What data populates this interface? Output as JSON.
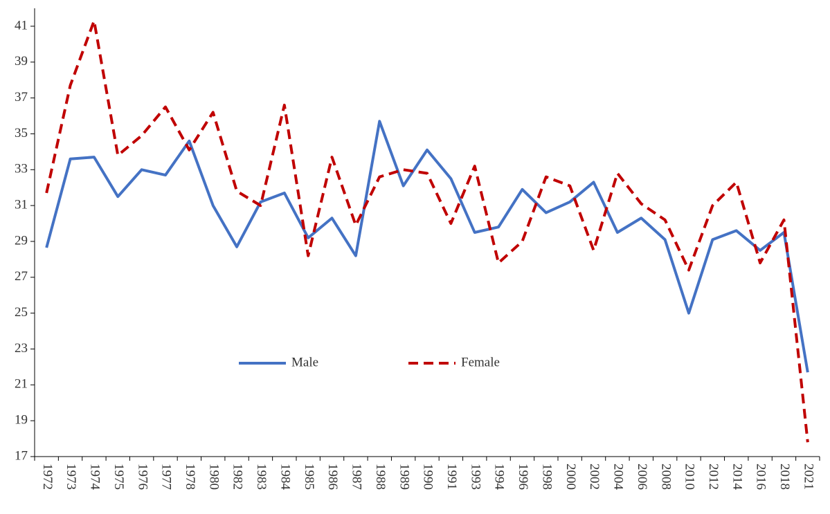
{
  "chart_data": {
    "type": "line",
    "categories": [
      "1972",
      "1973",
      "1974",
      "1975",
      "1976",
      "1977",
      "1978",
      "1980",
      "1982",
      "1983",
      "1984",
      "1985",
      "1986",
      "1987",
      "1988",
      "1989",
      "1990",
      "1991",
      "1993",
      "1994",
      "1996",
      "1998",
      "2000",
      "2002",
      "2004",
      "2006",
      "2008",
      "2010",
      "2012",
      "2014",
      "2016",
      "2018",
      "2021"
    ],
    "series": [
      {
        "name": "Male",
        "color": "#4472c4",
        "style": "solid",
        "values": [
          28.65,
          33.6,
          33.7,
          31.5,
          33.0,
          32.7,
          34.6,
          31.0,
          28.7,
          31.2,
          31.7,
          29.2,
          30.3,
          28.2,
          35.7,
          32.1,
          34.1,
          32.5,
          29.5,
          29.8,
          31.9,
          30.6,
          31.2,
          32.3,
          29.5,
          30.3,
          29.1,
          25.0,
          29.1,
          29.6,
          28.5,
          29.5,
          21.7
        ]
      },
      {
        "name": "Female",
        "color": "#c00000",
        "style": "dashed",
        "values": [
          31.7,
          37.7,
          41.3,
          33.8,
          34.9,
          36.5,
          34.1,
          36.2,
          31.8,
          31.0,
          36.6,
          28.2,
          33.7,
          29.9,
          32.6,
          33.0,
          32.8,
          30.0,
          33.2,
          27.8,
          29.0,
          32.6,
          32.1,
          28.5,
          32.8,
          31.1,
          30.2,
          27.4,
          31.0,
          32.3,
          27.8,
          30.2,
          17.8
        ]
      }
    ],
    "ylim": [
      17,
      42
    ],
    "yticks": [
      17,
      19,
      21,
      23,
      25,
      27,
      29,
      31,
      33,
      35,
      37,
      39,
      41
    ],
    "grid": false,
    "legend": "center"
  }
}
